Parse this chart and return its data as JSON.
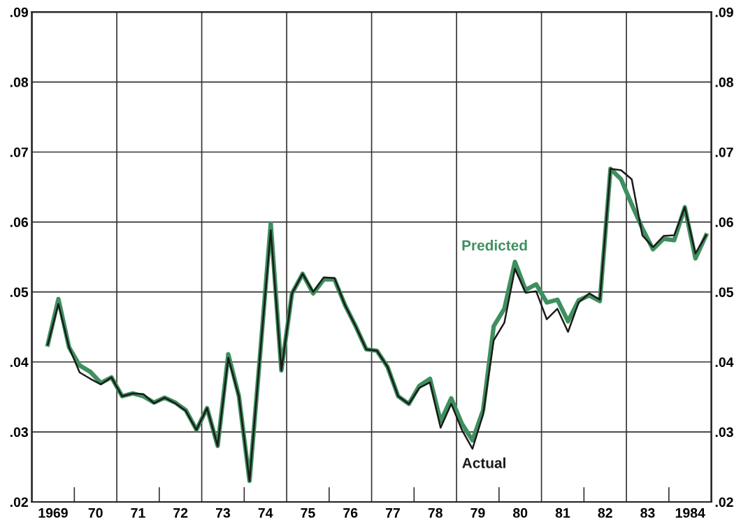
{
  "chart_data": {
    "type": "line",
    "x": [
      1968.875,
      1969.125,
      1969.375,
      1969.625,
      1969.875,
      1970.125,
      1970.375,
      1970.625,
      1970.875,
      1971.125,
      1971.375,
      1971.625,
      1971.875,
      1972.125,
      1972.375,
      1972.625,
      1972.875,
      1973.125,
      1973.375,
      1973.625,
      1973.875,
      1974.125,
      1974.375,
      1974.625,
      1974.875,
      1975.125,
      1975.375,
      1975.625,
      1975.875,
      1976.125,
      1976.375,
      1976.625,
      1976.875,
      1977.125,
      1977.375,
      1977.625,
      1977.875,
      1978.125,
      1978.375,
      1978.625,
      1978.875,
      1979.125,
      1979.375,
      1979.625,
      1979.875,
      1980.125,
      1980.375,
      1980.625,
      1980.875,
      1981.125,
      1981.375,
      1981.625,
      1981.875,
      1982.125,
      1982.375,
      1982.625,
      1982.875,
      1983.125,
      1983.375,
      1983.625,
      1983.875,
      1984.125,
      1984.375
    ],
    "series": [
      {
        "name": "Predicted",
        "color": "#3f8f5f",
        "values": [
          0.0425,
          0.049,
          0.0421,
          0.0395,
          0.0386,
          0.037,
          0.0378,
          0.0351,
          0.0355,
          0.0351,
          0.0342,
          0.0349,
          0.0342,
          0.0331,
          0.0303,
          0.0334,
          0.028,
          0.0411,
          0.0351,
          0.023,
          0.0411,
          0.0598,
          0.0388,
          0.0498,
          0.0526,
          0.0498,
          0.0518,
          0.0518,
          0.0481,
          0.0451,
          0.0418,
          0.0416,
          0.0393,
          0.0351,
          0.034,
          0.0366,
          0.0376,
          0.0315,
          0.0348,
          0.0312,
          0.0288,
          0.0331,
          0.0451,
          0.0476,
          0.0543,
          0.0503,
          0.0511,
          0.0485,
          0.0489,
          0.0458,
          0.0488,
          0.0495,
          0.0487,
          0.0676,
          0.0661,
          0.0625,
          0.0591,
          0.0561,
          0.0576,
          0.0574,
          0.0621,
          0.0548,
          0.0581
        ]
      },
      {
        "name": "Actual",
        "color": "#1a1a1a",
        "values": [
          0.0425,
          0.0483,
          0.0421,
          0.0385,
          0.0376,
          0.0368,
          0.0378,
          0.0351,
          0.0355,
          0.0354,
          0.0341,
          0.0349,
          0.0341,
          0.033,
          0.0303,
          0.0334,
          0.028,
          0.0406,
          0.0351,
          0.023,
          0.0411,
          0.0588,
          0.0388,
          0.0498,
          0.0526,
          0.05,
          0.0521,
          0.052,
          0.0481,
          0.0451,
          0.0418,
          0.0416,
          0.0393,
          0.0351,
          0.034,
          0.0363,
          0.0371,
          0.0306,
          0.034,
          0.0303,
          0.0276,
          0.0325,
          0.0431,
          0.0456,
          0.0533,
          0.0499,
          0.0501,
          0.0461,
          0.0476,
          0.0443,
          0.0485,
          0.0498,
          0.0489,
          0.0676,
          0.0674,
          0.0661,
          0.0581,
          0.0564,
          0.058,
          0.0581,
          0.0621,
          0.0555,
          0.0581
        ]
      }
    ],
    "xlim": [
      1968.5,
      1984.5
    ],
    "xticks": [
      {
        "value": 1969,
        "label": "1969"
      },
      {
        "value": 1970,
        "label": "70"
      },
      {
        "value": 1971,
        "label": "71"
      },
      {
        "value": 1972,
        "label": "72"
      },
      {
        "value": 1973,
        "label": "73"
      },
      {
        "value": 1974,
        "label": "74"
      },
      {
        "value": 1975,
        "label": "75"
      },
      {
        "value": 1976,
        "label": "76"
      },
      {
        "value": 1977,
        "label": "77"
      },
      {
        "value": 1978,
        "label": "78"
      },
      {
        "value": 1979,
        "label": "79"
      },
      {
        "value": 1980,
        "label": "80"
      },
      {
        "value": 1981,
        "label": "81"
      },
      {
        "value": 1982,
        "label": "82"
      },
      {
        "value": 1983,
        "label": "83"
      },
      {
        "value": 1984,
        "label": "1984"
      }
    ],
    "ylim": [
      0.02,
      0.09
    ],
    "yticks": [
      {
        "value": 0.02,
        "label": ".02"
      },
      {
        "value": 0.03,
        "label": ".03"
      },
      {
        "value": 0.04,
        "label": ".04"
      },
      {
        "value": 0.05,
        "label": ".05"
      },
      {
        "value": 0.06,
        "label": ".06"
      },
      {
        "value": 0.07,
        "label": ".07"
      },
      {
        "value": 0.08,
        "label": ".08"
      },
      {
        "value": 0.09,
        "label": ".09"
      }
    ],
    "y2lim": [
      0.02,
      0.09
    ],
    "y2ticks": [
      {
        "value": 0.02,
        "label": ".02"
      },
      {
        "value": 0.03,
        "label": ".03"
      },
      {
        "value": 0.04,
        "label": ".04"
      },
      {
        "value": 0.05,
        "label": ".05"
      },
      {
        "value": 0.06,
        "label": ".06"
      },
      {
        "value": 0.07,
        "label": ".07"
      },
      {
        "value": 0.08,
        "label": ".08"
      },
      {
        "value": 0.09,
        "label": ".09"
      }
    ],
    "grid": "y",
    "ref_lines": [
      {
        "axis": "x",
        "value": 1970.5
      },
      {
        "axis": "x",
        "value": 1972.5
      },
      {
        "axis": "x",
        "value": 1974.5
      },
      {
        "axis": "x",
        "value": 1976.5
      },
      {
        "axis": "x",
        "value": 1978.5
      },
      {
        "axis": "x",
        "value": 1980.5
      },
      {
        "axis": "x",
        "value": 1982.5
      }
    ],
    "legend": false,
    "line_style": "solid",
    "marker": "none"
  }
}
